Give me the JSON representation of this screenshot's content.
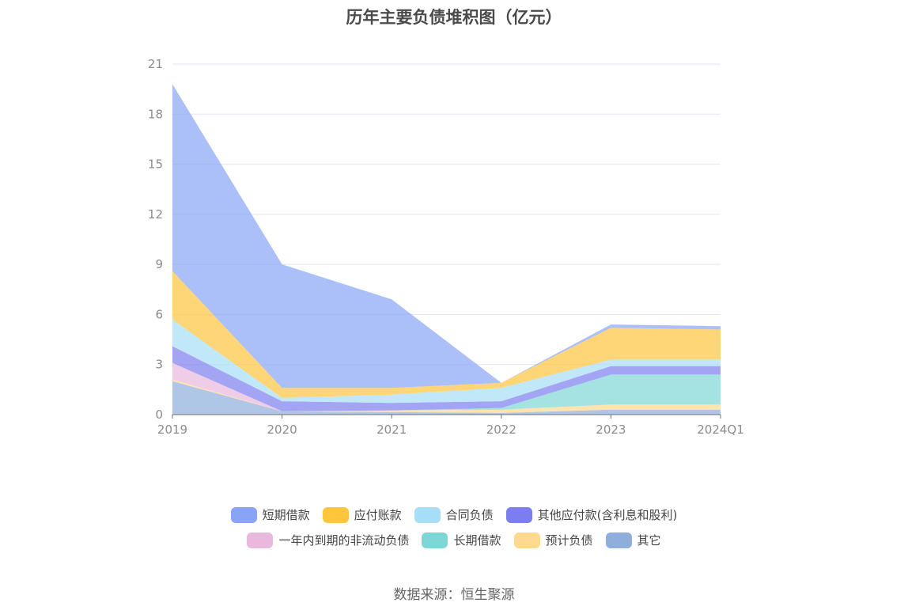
{
  "chart_data": {
    "type": "area",
    "stacked": true,
    "title": "历年主要负债堆积图（亿元）",
    "categories": [
      "2019",
      "2020",
      "2021",
      "2022",
      "2023",
      "2024Q1"
    ],
    "ylim": [
      0,
      21
    ],
    "yticks": [
      0,
      3,
      6,
      9,
      12,
      15,
      18,
      21
    ],
    "grid": true,
    "legend_position": "bottom",
    "series": [
      {
        "name": "其它",
        "color": "#8eaedc",
        "values": [
          2.0,
          0.2,
          0.15,
          0.1,
          0.3,
          0.3
        ]
      },
      {
        "name": "预计负债",
        "color": "#ffd98e",
        "values": [
          0.1,
          0.0,
          0.1,
          0.2,
          0.3,
          0.3
        ]
      },
      {
        "name": "长期借款",
        "color": "#7fd6d6",
        "values": [
          0.0,
          0.0,
          0.0,
          0.1,
          1.8,
          1.8
        ]
      },
      {
        "name": "一年内到期的非流动负债",
        "color": "#eab8dc",
        "values": [
          1.0,
          0.0,
          0.0,
          0.0,
          0.0,
          0.0
        ]
      },
      {
        "name": "其他应付款(含利息和股利)",
        "color": "#7c7df0",
        "values": [
          1.0,
          0.6,
          0.45,
          0.4,
          0.5,
          0.5
        ]
      },
      {
        "name": "合同负债",
        "color": "#a6def7",
        "values": [
          1.6,
          0.2,
          0.5,
          0.8,
          0.4,
          0.4
        ]
      },
      {
        "name": "应付账款",
        "color": "#ffc53d",
        "values": [
          2.9,
          0.6,
          0.4,
          0.3,
          1.9,
          1.8
        ]
      },
      {
        "name": "短期借款",
        "color": "#87a4f7",
        "values": [
          11.2,
          7.4,
          5.3,
          0.0,
          0.2,
          0.2
        ]
      }
    ]
  },
  "legend_rows": [
    [
      "短期借款",
      "应付账款",
      "合同负债",
      "其他应付款(含利息和股利)"
    ],
    [
      "一年内到期的非流动负债",
      "长期借款",
      "预计负债",
      "其它"
    ]
  ],
  "source": "数据来源：恒生聚源"
}
